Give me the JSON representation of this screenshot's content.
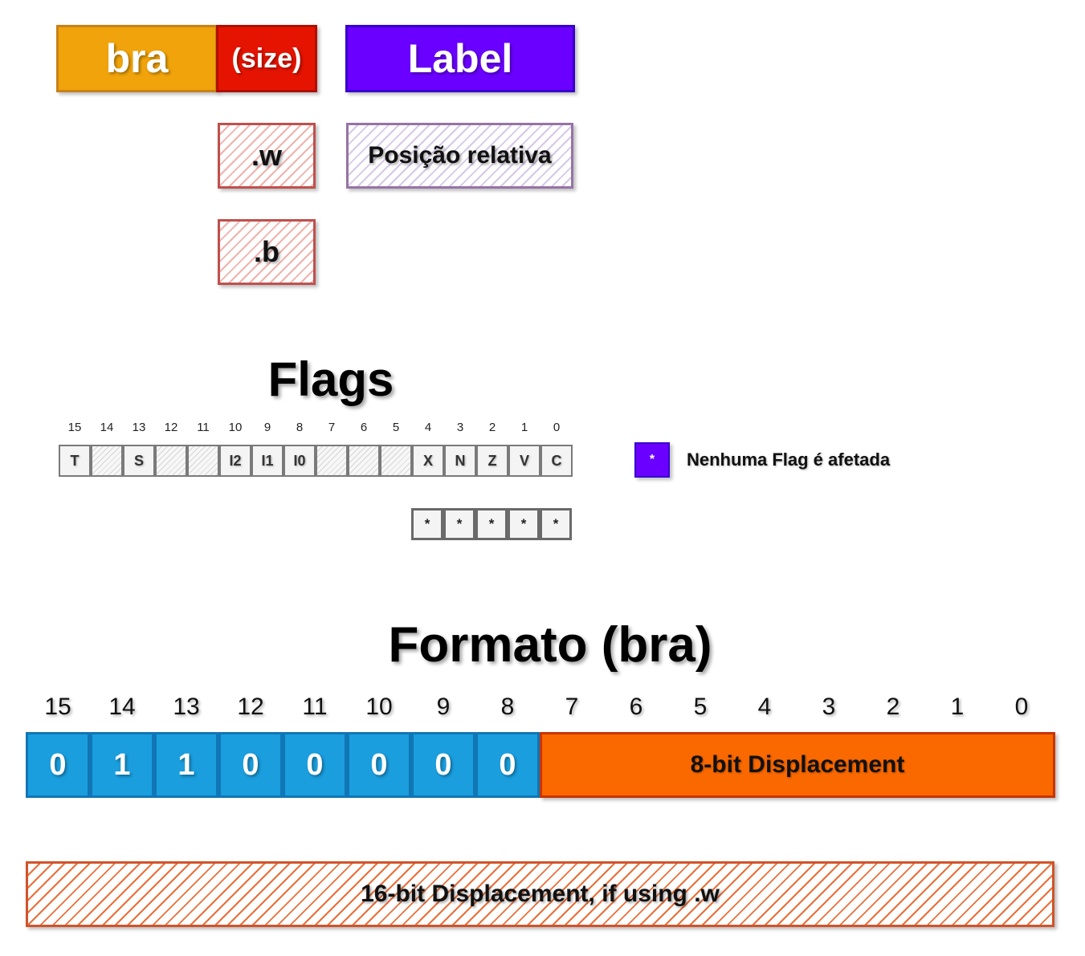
{
  "header": {
    "mnemonic": "bra",
    "size": "(size)",
    "operand": "Label",
    "size_w": ".w",
    "size_b": ".b",
    "operand_desc": "Posição relativa"
  },
  "flags": {
    "title": "Flags",
    "bit_numbers": [
      "15",
      "14",
      "13",
      "12",
      "11",
      "10",
      "9",
      "8",
      "7",
      "6",
      "5",
      "4",
      "3",
      "2",
      "1",
      "0"
    ],
    "bits": [
      "T",
      "",
      "S",
      "",
      "",
      "I2",
      "I1",
      "I0",
      "",
      "",
      "",
      "X",
      "N",
      "Z",
      "V",
      "C"
    ],
    "effects": [
      "*",
      "*",
      "*",
      "*",
      "*"
    ],
    "legend_symbol": "*",
    "legend_text": "Nenhuma Flag é afetada"
  },
  "format": {
    "title": "Formato (bra)",
    "bit_numbers": [
      "15",
      "14",
      "13",
      "12",
      "11",
      "10",
      "9",
      "8",
      "7",
      "6",
      "5",
      "4",
      "3",
      "2",
      "1",
      "0"
    ],
    "opcode_bits": [
      "0",
      "1",
      "1",
      "0",
      "0",
      "0",
      "0",
      "0"
    ],
    "displacement_8": "8-bit Displacement",
    "displacement_16": "16-bit Displacement, if using .w"
  },
  "colors": {
    "mnemonic": "#f0a30a",
    "size": "#e51400",
    "operand": "#6a00ff",
    "opcode": "#1a9ede",
    "displacement": "#fa6800"
  }
}
